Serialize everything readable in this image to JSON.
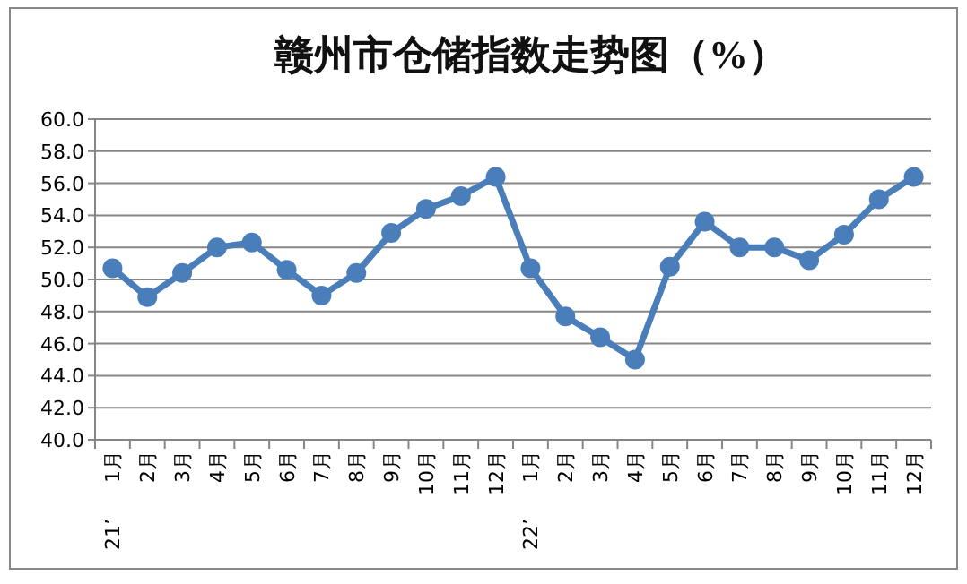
{
  "chart_data": {
    "type": "line",
    "title": "赣州市仓储指数走势图（%）",
    "categories": [
      "1月",
      "2月",
      "3月",
      "4月",
      "5月",
      "6月",
      "7月",
      "8月",
      "9月",
      "10月",
      "11月",
      "12月",
      "1月",
      "2月",
      "3月",
      "4月",
      "5月",
      "6月",
      "7月",
      "8月",
      "9月",
      "10月",
      "11月",
      "12月"
    ],
    "values": [
      50.7,
      48.9,
      50.4,
      52.0,
      52.3,
      50.6,
      49.0,
      50.4,
      52.9,
      54.4,
      55.2,
      56.4,
      50.7,
      47.7,
      46.4,
      45.0,
      50.8,
      53.6,
      52.0,
      52.0,
      51.2,
      52.8,
      55.0,
      56.4
    ],
    "color": "#4a7ebb",
    "ylim": [
      40,
      60
    ],
    "yticks": [
      {
        "value": 40,
        "label": "40.0"
      },
      {
        "value": 42,
        "label": "42.0"
      },
      {
        "value": 44,
        "label": "44.0"
      },
      {
        "value": 46,
        "label": "46.0"
      },
      {
        "value": 48,
        "label": "48.0"
      },
      {
        "value": 50,
        "label": "50.0"
      },
      {
        "value": 52,
        "label": "52.0"
      },
      {
        "value": 54,
        "label": "54.0"
      },
      {
        "value": 56,
        "label": "56.0"
      },
      {
        "value": 58,
        "label": "58.0"
      },
      {
        "value": 60,
        "label": "60.0"
      }
    ],
    "grid": "y",
    "marker": "circle",
    "line_style": "solid",
    "annotations": [
      "21’",
      "22’"
    ]
  }
}
